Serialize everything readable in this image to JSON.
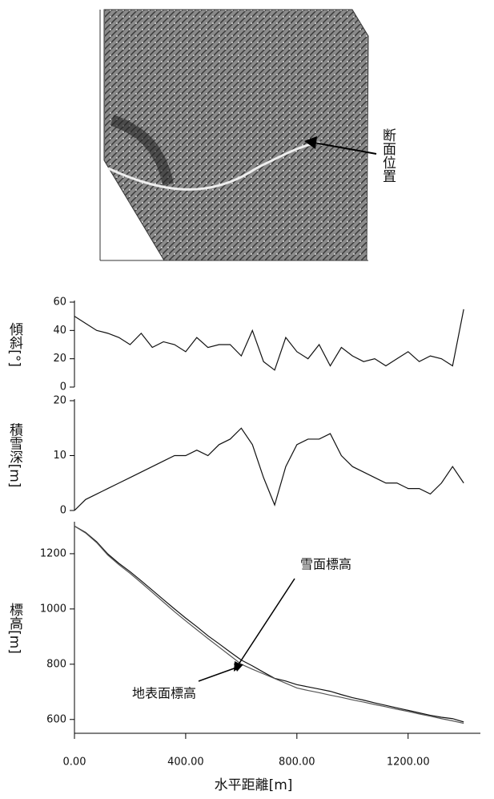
{
  "map_annotation": "断面位置",
  "chart_data": [
    {
      "type": "line",
      "y_label": "傾斜[°]",
      "x": [
        0,
        40,
        80,
        120,
        160,
        200,
        240,
        280,
        320,
        360,
        400,
        440,
        480,
        520,
        560,
        600,
        640,
        680,
        720,
        760,
        800,
        840,
        880,
        920,
        960,
        1000,
        1040,
        1080,
        1120,
        1160,
        1200,
        1240,
        1280,
        1320,
        1360,
        1400
      ],
      "xlim": [
        0,
        1460
      ],
      "ylim": [
        0,
        60
      ],
      "yticks": [
        0,
        20,
        40,
        60
      ],
      "series": [
        {
          "color": "#111111",
          "values": [
            50,
            45,
            40,
            38,
            35,
            30,
            38,
            28,
            32,
            30,
            25,
            35,
            28,
            30,
            30,
            22,
            40,
            18,
            12,
            35,
            25,
            20,
            30,
            15,
            28,
            22,
            18,
            20,
            15,
            20,
            25,
            18,
            22,
            20,
            15,
            55
          ]
        }
      ]
    },
    {
      "type": "line",
      "y_label": "積雪深[m]",
      "x": [
        0,
        40,
        80,
        120,
        160,
        200,
        240,
        280,
        320,
        360,
        400,
        440,
        480,
        520,
        560,
        600,
        640,
        680,
        720,
        760,
        800,
        840,
        880,
        920,
        960,
        1000,
        1040,
        1080,
        1120,
        1160,
        1200,
        1240,
        1280,
        1320,
        1360,
        1400
      ],
      "xlim": [
        0,
        1460
      ],
      "ylim": [
        0,
        20
      ],
      "yticks": [
        0,
        10,
        20
      ],
      "series": [
        {
          "color": "#111111",
          "values": [
            0,
            2,
            3,
            4,
            5,
            6,
            7,
            8,
            9,
            10,
            10,
            11,
            10,
            12,
            13,
            15,
            12,
            6,
            1,
            8,
            12,
            13,
            13,
            14,
            10,
            8,
            7,
            6,
            5,
            5,
            4,
            4,
            3,
            5,
            8,
            5
          ]
        }
      ]
    },
    {
      "type": "line",
      "y_label": "標高[m]",
      "x_label": "水平距離[m]",
      "x": [
        0,
        40,
        80,
        120,
        160,
        200,
        240,
        280,
        320,
        360,
        400,
        440,
        480,
        520,
        560,
        600,
        640,
        680,
        720,
        760,
        800,
        840,
        880,
        920,
        960,
        1000,
        1040,
        1080,
        1120,
        1160,
        1200,
        1240,
        1280,
        1320,
        1360,
        1400
      ],
      "xlim": [
        0,
        1460
      ],
      "ylim": [
        550,
        1310
      ],
      "yticks": [
        600,
        800,
        1000,
        1200
      ],
      "xticks": [
        {
          "value": 0,
          "label": "0.00"
        },
        {
          "value": 400,
          "label": "400.00"
        },
        {
          "value": 800,
          "label": "800.00"
        },
        {
          "value": 1200,
          "label": "1200.00"
        }
      ],
      "series": [
        {
          "name": "雪面標高",
          "color": "#111111",
          "values": [
            1300,
            1277,
            1243,
            1199,
            1165,
            1135,
            1102,
            1068,
            1034,
            1000,
            967,
            936,
            903,
            874,
            844,
            815,
            794,
            771,
            749,
            739,
            726,
            718,
            710,
            702,
            690,
            679,
            670,
            660,
            651,
            642,
            633,
            624,
            615,
            608,
            603,
            591
          ]
        },
        {
          "name": "地表面標高",
          "color": "#555555",
          "values": [
            1300,
            1275,
            1240,
            1195,
            1160,
            1129,
            1095,
            1060,
            1025,
            990,
            957,
            925,
            893,
            862,
            831,
            800,
            782,
            765,
            748,
            731,
            714,
            705,
            697,
            688,
            680,
            671,
            663,
            654,
            646,
            637,
            629,
            620,
            612,
            603,
            595,
            586
          ]
        }
      ]
    }
  ]
}
